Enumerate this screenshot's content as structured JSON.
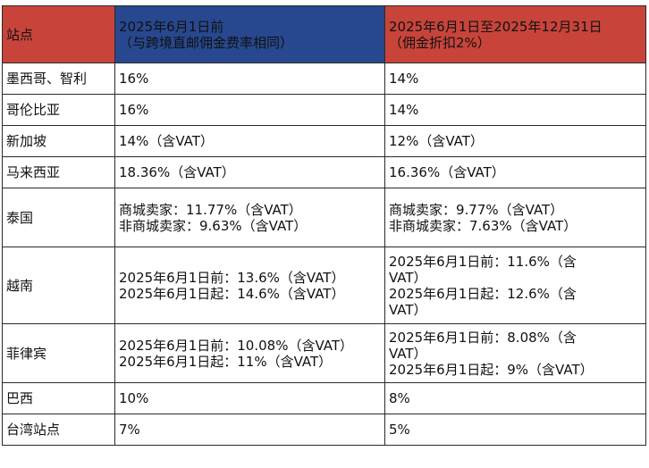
{
  "colors": {
    "header_red": "#c8443a",
    "header_blue": "#27488f",
    "border": "#2a2a2a"
  },
  "header": {
    "site": "站点",
    "before_line1": "2025年6月1日前",
    "before_line2": "（与跨境直邮佣金费率相同）",
    "after_line1": "2025年6月1日至2025年12月31日",
    "after_line2": "（佣金折扣2%）"
  },
  "rows": [
    {
      "site": "墨西哥、智利",
      "before": [
        "16%"
      ],
      "after": [
        "14%"
      ]
    },
    {
      "site": "哥伦比亚",
      "before": [
        "16%"
      ],
      "after": [
        "14%"
      ]
    },
    {
      "site": "新加坡",
      "before": [
        "14%（含VAT）"
      ],
      "after": [
        "12%（含VAT）"
      ]
    },
    {
      "site": "马来西亚",
      "before": [
        "18.36%（含VAT）"
      ],
      "after": [
        "16.36%（含VAT）"
      ]
    },
    {
      "site": "泰国",
      "before": [
        "商城卖家：11.77%（含VAT）",
        "非商城卖家：9.63%（含VAT）"
      ],
      "after": [
        "商城卖家：9.77%（含VAT）",
        "非商城卖家：7.63%（含VAT）"
      ]
    },
    {
      "site": "越南",
      "before": [
        "2025年6月1日前：13.6%（含VAT）",
        "2025年6月1日起：14.6%（含VAT）"
      ],
      "after": [
        "2025年6月1日前：11.6%（含",
        "VAT）",
        "2025年6月1日起：12.6%（含",
        "VAT）"
      ]
    },
    {
      "site": "菲律宾",
      "before": [
        "2025年6月1日前：10.08%（含VAT）",
        "2025年6月1日起：11%（含VAT）"
      ],
      "after": [
        "2025年6月1日前：8.08%（含",
        "VAT）",
        "2025年6月1日起：9%（含VAT）"
      ]
    },
    {
      "site": "巴西",
      "before": [
        "10%"
      ],
      "after": [
        "8%"
      ]
    },
    {
      "site": "台湾站点",
      "before": [
        "7%"
      ],
      "after": [
        "5%"
      ]
    }
  ]
}
